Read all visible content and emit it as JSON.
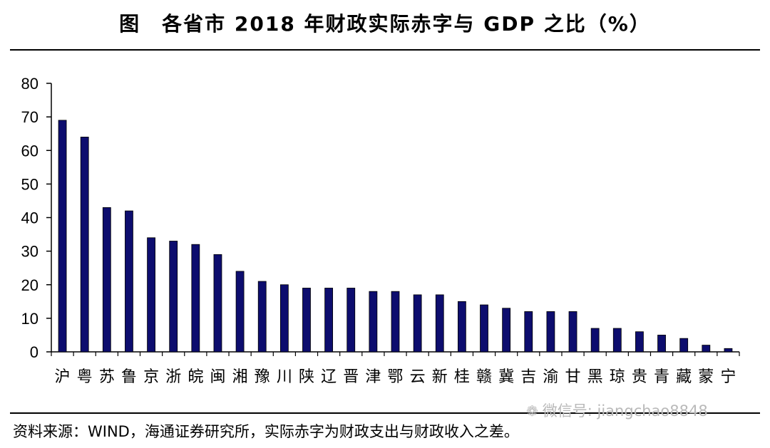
{
  "title": "图　各省市 2018 年财政实际赤字与 GDP 之比（%）",
  "source": "资料来源：WIND，海通证券研究所，实际赤字为财政支出与财政收入之差。",
  "watermark": "微信号: jiangchao8848",
  "colors": {
    "bar": "#0d0d6e",
    "axis": "#000000"
  },
  "chart_data": {
    "type": "bar",
    "title": "图　各省市 2018 年财政实际赤字与 GDP 之比（%）",
    "xlabel": "",
    "ylabel": "",
    "ylim": [
      0,
      80
    ],
    "yticks": [
      0,
      10,
      20,
      30,
      40,
      50,
      60,
      70,
      80
    ],
    "grid": false,
    "legend": "none",
    "categories": [
      "沪",
      "粤",
      "苏",
      "鲁",
      "京",
      "浙",
      "皖",
      "闽",
      "湘",
      "豫",
      "川",
      "陕",
      "辽",
      "晋",
      "津",
      "鄂",
      "云",
      "新",
      "桂",
      "赣",
      "冀",
      "吉",
      "渝",
      "甘",
      "黑",
      "琼",
      "贵",
      "青",
      "藏",
      "蒙",
      "宁"
    ],
    "values": [
      69,
      64,
      43,
      42,
      34,
      33,
      32,
      29,
      24,
      21,
      20,
      19,
      19,
      19,
      18,
      18,
      17,
      17,
      15,
      14,
      13,
      12,
      12,
      12,
      7,
      7,
      6,
      5,
      4,
      2,
      1
    ]
  }
}
